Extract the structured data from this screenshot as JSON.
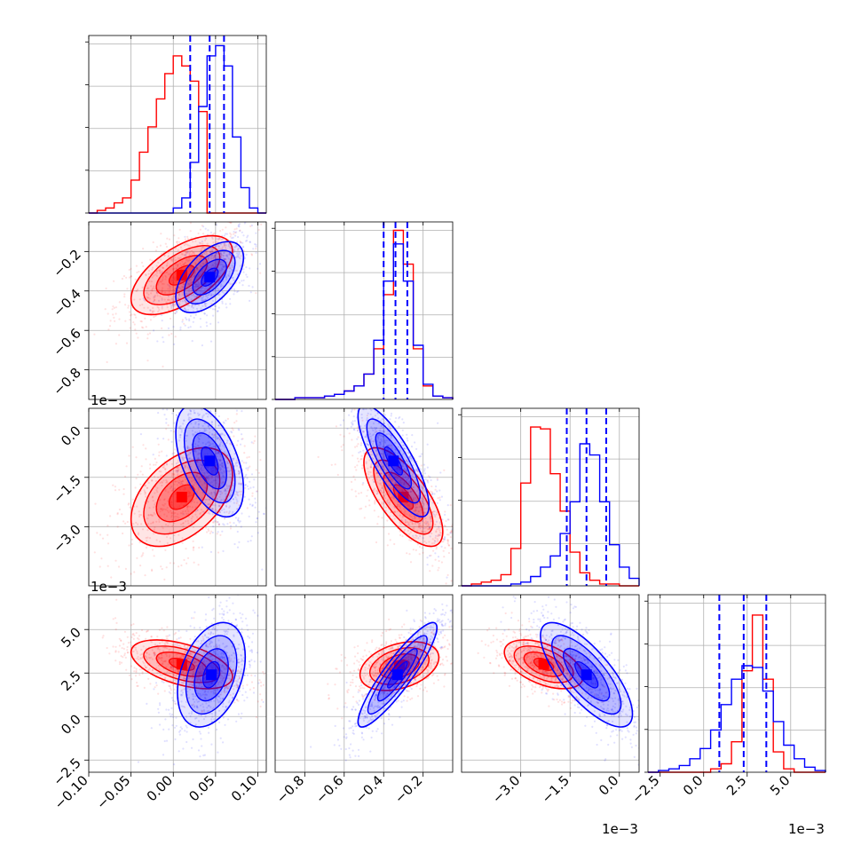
{
  "chart_data": {
    "type": "corner",
    "colors": {
      "red": "#ff0000",
      "blue": "#0000ff",
      "grid": "#b0b0b0"
    },
    "grid": true,
    "n_params": 4,
    "series": [
      {
        "color": "red",
        "histograms": [
          {
            "bins": [
              -0.1,
              -0.09,
              -0.08,
              -0.07,
              -0.06,
              -0.05,
              -0.04,
              -0.03,
              -0.02,
              -0.01,
              0.0,
              0.01,
              0.02,
              0.03,
              0.04,
              0.05,
              0.06,
              0.07,
              0.08,
              0.09,
              0.1,
              0.11
            ],
            "counts": [
              0,
              1,
              2,
              4,
              6,
              13,
              24,
              34,
              45,
              55,
              62,
              58,
              52,
              40,
              0,
              0,
              0,
              0,
              0,
              0,
              0
            ]
          },
          {
            "bins": [
              -0.95,
              -0.9,
              -0.85,
              -0.8,
              -0.75,
              -0.7,
              -0.65,
              -0.6,
              -0.55,
              -0.5,
              -0.45,
              -0.4,
              -0.35,
              -0.3,
              -0.25,
              -0.2,
              -0.15,
              -0.1,
              -0.05
            ],
            "counts": [
              0,
              0,
              1,
              1,
              1,
              2,
              3,
              5,
              8,
              15,
              30,
              62,
              100,
              80,
              30,
              8,
              2,
              1
            ]
          },
          {
            "bins": [
              -4.8,
              -4.5,
              -4.2,
              -3.9,
              -3.6,
              -3.3,
              -3.0,
              -2.7,
              -2.4,
              -2.1,
              -1.8,
              -1.5,
              -1.2,
              -0.9,
              -0.6,
              -0.3,
              0.0,
              0.3,
              0.6
            ],
            "counts": [
              0,
              1,
              2,
              3,
              6,
              20,
              55,
              85,
              84,
              60,
              40,
              18,
              7,
              3,
              1,
              1,
              0,
              0
            ]
          },
          {
            "bins": [
              -3.2,
              -2.6,
              -2.0,
              -1.4,
              -0.8,
              -0.2,
              0.4,
              1.0,
              1.6,
              2.2,
              2.8,
              3.4,
              4.0,
              4.6,
              5.2,
              5.8,
              6.4,
              7.0
            ],
            "counts": [
              0,
              0,
              0,
              0,
              0,
              0,
              2,
              5,
              18,
              60,
              93,
              55,
              12,
              2,
              0,
              0,
              0
            ]
          }
        ]
      },
      {
        "color": "blue",
        "histograms": [
          {
            "bins": [
              -0.1,
              -0.09,
              -0.08,
              -0.07,
              -0.06,
              -0.05,
              -0.04,
              -0.03,
              -0.02,
              -0.01,
              0.0,
              0.01,
              0.02,
              0.03,
              0.04,
              0.05,
              0.06,
              0.07,
              0.08,
              0.09,
              0.1,
              0.11
            ],
            "counts": [
              0,
              0,
              0,
              0,
              0,
              0,
              0,
              0,
              0,
              0,
              2,
              6,
              20,
              42,
              62,
              66,
              58,
              30,
              10,
              2,
              0
            ]
          },
          {
            "bins": [
              -0.95,
              -0.9,
              -0.85,
              -0.8,
              -0.75,
              -0.7,
              -0.65,
              -0.6,
              -0.55,
              -0.5,
              -0.45,
              -0.4,
              -0.35,
              -0.3,
              -0.25,
              -0.2,
              -0.15,
              -0.1,
              -0.05
            ],
            "counts": [
              0,
              0,
              1,
              1,
              1,
              2,
              3,
              5,
              8,
              15,
              35,
              70,
              92,
              70,
              32,
              9,
              2,
              1
            ]
          },
          {
            "bins": [
              -4.8,
              -4.5,
              -4.2,
              -3.9,
              -3.6,
              -3.3,
              -3.0,
              -2.7,
              -2.4,
              -2.1,
              -1.8,
              -1.5,
              -1.2,
              -0.9,
              -0.6,
              -0.3,
              0.0,
              0.3,
              0.6
            ],
            "counts": [
              0,
              0,
              0,
              0,
              0,
              1,
              2,
              5,
              10,
              16,
              28,
              45,
              76,
              70,
              45,
              22,
              10,
              4
            ]
          },
          {
            "bins": [
              -3.2,
              -2.6,
              -2.0,
              -1.4,
              -0.8,
              -0.2,
              0.4,
              1.0,
              1.6,
              2.2,
              2.8,
              3.4,
              4.0,
              4.6,
              5.2,
              5.8,
              6.4,
              7.0
            ],
            "counts": [
              0,
              1,
              2,
              4,
              8,
              14,
              25,
              40,
              55,
              63,
              62,
              48,
              30,
              16,
              8,
              3,
              1
            ]
          }
        ]
      }
    ],
    "quantiles": [
      [
        0.02,
        0.043,
        0.06
      ],
      [
        -0.4,
        -0.34,
        -0.28
      ],
      [
        -1.6,
        -1.0,
        -0.4
      ],
      [
        0.9,
        2.3,
        3.6
      ]
    ],
    "hist_ylim": [
      [
        0,
        70
      ],
      [
        0,
        105
      ],
      [
        0,
        95
      ],
      [
        0,
        105
      ]
    ],
    "ranges": [
      [
        -0.1,
        0.11
      ],
      [
        -0.95,
        -0.05
      ],
      [
        -4.8,
        0.6
      ],
      [
        -3.2,
        7.0
      ]
    ],
    "gaussians": {
      "red": [
        {
          "pair": [
            1,
            0
          ],
          "mean": [
            0.01,
            -0.32
          ],
          "sd": [
            0.03,
            0.1
          ],
          "rho": 0.6
        },
        {
          "pair": [
            2,
            0
          ],
          "mean": [
            0.01,
            -2.1
          ],
          "sd": [
            0.03,
            0.75
          ],
          "rho": 0.45
        },
        {
          "pair": [
            2,
            1
          ],
          "mean": [
            -0.3,
            -2.1
          ],
          "sd": [
            0.1,
            0.75
          ],
          "rho": -0.7
        },
        {
          "pair": [
            3,
            0
          ],
          "mean": [
            0.01,
            3.0
          ],
          "sd": [
            0.03,
            0.7
          ],
          "rho": -0.5
        },
        {
          "pair": [
            3,
            1
          ],
          "mean": [
            -0.32,
            2.9
          ],
          "sd": [
            0.1,
            0.7
          ],
          "rho": 0.35
        },
        {
          "pair": [
            3,
            2
          ],
          "mean": [
            -2.3,
            3.0
          ],
          "sd": [
            0.6,
            0.7
          ],
          "rho": -0.5
        }
      ],
      "blue": [
        {
          "pair": [
            1,
            0
          ],
          "mean": [
            0.043,
            -0.33
          ],
          "sd": [
            0.02,
            0.09
          ],
          "rho": 0.55
        },
        {
          "pair": [
            2,
            0
          ],
          "mean": [
            0.043,
            -1.0
          ],
          "sd": [
            0.02,
            0.85
          ],
          "rho": -0.5
        },
        {
          "pair": [
            2,
            1
          ],
          "mean": [
            -0.35,
            -1.0
          ],
          "sd": [
            0.09,
            0.85
          ],
          "rho": -0.8
        },
        {
          "pair": [
            3,
            0
          ],
          "mean": [
            0.045,
            2.4
          ],
          "sd": [
            0.02,
            1.5
          ],
          "rho": 0.35
        },
        {
          "pair": [
            3,
            1
          ],
          "mean": [
            -0.33,
            2.4
          ],
          "sd": [
            0.1,
            1.5
          ],
          "rho": 0.9
        },
        {
          "pair": [
            3,
            2
          ],
          "mean": [
            -1.0,
            2.4
          ],
          "sd": [
            0.7,
            1.5
          ],
          "rho": -0.75
        }
      ]
    },
    "ticks": {
      "p0": {
        "values": [
          -0.1,
          -0.05,
          0.0,
          0.05,
          0.1
        ],
        "labels": [
          "−0.10",
          "−0.05",
          "0.00",
          "0.05",
          "0.10"
        ]
      },
      "p1": {
        "values": [
          -0.8,
          -0.6,
          -0.4,
          -0.2
        ],
        "labels": [
          "−0.8",
          "−0.6",
          "−0.4",
          "−0.2"
        ]
      },
      "p2": {
        "values": [
          -3.0,
          -1.5,
          0.0
        ],
        "labels": [
          "−3.0",
          "−1.5",
          "0.0"
        ]
      },
      "p3": {
        "values": [
          -2.5,
          0.0,
          2.5,
          5.0
        ],
        "labels": [
          "−2.5",
          "0.0",
          "2.5",
          "5.0"
        ]
      }
    },
    "offset_labels": [
      "1e−3",
      "1e−3",
      "1e−3",
      "1e−3"
    ]
  }
}
